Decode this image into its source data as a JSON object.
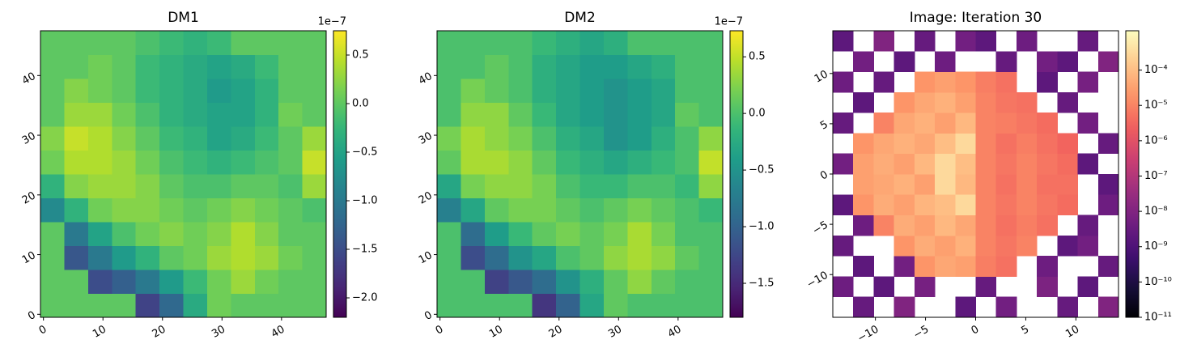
{
  "chart_data": [
    {
      "type": "heatmap",
      "title": "DM1",
      "colormap": "viridis",
      "origin": "lower",
      "zscale": "linear",
      "xlim": [
        -0.5,
        47.5
      ],
      "ylim": [
        -0.5,
        47.5
      ],
      "xticks": [
        0,
        10,
        20,
        30,
        40
      ],
      "yticks": [
        0,
        10,
        20,
        30,
        40
      ],
      "zlim": [
        -2.2,
        0.75
      ],
      "colorbar_offset": "1e−7",
      "zticks": [
        {
          "value": -2,
          "label": "−2.0"
        },
        {
          "value": -1.5,
          "label": "−1.5"
        },
        {
          "value": -1,
          "label": "−1.0"
        },
        {
          "value": -0.5,
          "label": "−0.5"
        },
        {
          "value": 0,
          "label": "0.0"
        },
        0.5
      ],
      "z": [
        [
          0,
          0,
          0,
          0,
          -1.6,
          -1.2,
          -0.4,
          0.1,
          0,
          0,
          0,
          0
        ],
        [
          0,
          0,
          -1.5,
          -1.3,
          -1.0,
          -0.6,
          -0.2,
          0.1,
          0.3,
          0.1,
          0,
          0
        ],
        [
          0,
          -1.4,
          -1.0,
          -0.6,
          -0.3,
          0.0,
          0.1,
          0.3,
          0.4,
          0.3,
          0.1,
          0
        ],
        [
          0,
          -1.0,
          -0.5,
          -0.1,
          0.1,
          0.2,
          0.1,
          0.2,
          0.4,
          0.2,
          0.0,
          0
        ],
        [
          -0.8,
          -0.3,
          0.1,
          0.2,
          0.2,
          0.1,
          0.0,
          0.1,
          0.2,
          0.1,
          0.0,
          -0.1
        ],
        [
          -0.3,
          0.2,
          0.3,
          0.3,
          0.2,
          0.0,
          -0.1,
          -0.1,
          0.0,
          0.0,
          -0.1,
          0.3
        ],
        [
          0.1,
          0.4,
          0.4,
          0.3,
          0.1,
          -0.1,
          -0.2,
          -0.3,
          -0.2,
          -0.1,
          0.0,
          0.5
        ],
        [
          0.2,
          0.5,
          0.4,
          0.2,
          0.0,
          -0.2,
          -0.3,
          -0.5,
          -0.4,
          -0.2,
          0.0,
          0.3
        ],
        [
          0,
          0.3,
          0.3,
          0.1,
          -0.1,
          -0.3,
          -0.4,
          -0.5,
          -0.5,
          -0.3,
          0.1,
          0
        ],
        [
          0,
          0.2,
          0.1,
          0.0,
          -0.2,
          -0.3,
          -0.4,
          -0.6,
          -0.5,
          -0.3,
          0.0,
          0
        ],
        [
          0,
          0,
          0.1,
          0.0,
          -0.2,
          -0.3,
          -0.4,
          -0.5,
          -0.4,
          -0.2,
          0,
          0
        ],
        [
          0,
          0,
          0,
          0,
          -0.1,
          -0.2,
          -0.3,
          -0.2,
          0,
          0,
          0,
          0
        ]
      ]
    },
    {
      "type": "heatmap",
      "title": "DM2",
      "colormap": "viridis",
      "origin": "lower",
      "zscale": "linear",
      "xlim": [
        -0.5,
        47.5
      ],
      "ylim": [
        -0.5,
        47.5
      ],
      "xticks": [
        0,
        10,
        20,
        30,
        40
      ],
      "yticks": [
        0,
        10,
        20,
        30,
        40
      ],
      "zlim": [
        -1.8,
        0.73
      ],
      "colorbar_offset": "1e−7",
      "zticks": [
        {
          "value": -1.5,
          "label": "−1.5"
        },
        {
          "value": -1,
          "label": "−1.0"
        },
        {
          "value": -0.5,
          "label": "−0.5"
        },
        {
          "value": 0,
          "label": "0.0"
        },
        0.5
      ],
      "z": [
        [
          0,
          0,
          0,
          0,
          -1.4,
          -1.0,
          -0.3,
          0.1,
          0,
          0,
          0,
          0
        ],
        [
          0,
          0,
          -1.3,
          -1.1,
          -0.9,
          -0.5,
          -0.2,
          0.1,
          0.3,
          0.1,
          0,
          0
        ],
        [
          0,
          -1.2,
          -0.9,
          -0.5,
          -0.3,
          0.0,
          0.1,
          0.3,
          0.4,
          0.3,
          0.1,
          0
        ],
        [
          0,
          -0.9,
          -0.4,
          -0.1,
          0.1,
          0.2,
          0.1,
          0.2,
          0.4,
          0.2,
          0.0,
          0
        ],
        [
          -0.7,
          -0.3,
          0.1,
          0.2,
          0.2,
          0.1,
          0.0,
          0.1,
          0.2,
          0.1,
          0.0,
          -0.1
        ],
        [
          -0.3,
          0.2,
          0.3,
          0.3,
          0.2,
          0.0,
          -0.1,
          -0.1,
          0.0,
          0.0,
          -0.1,
          0.3
        ],
        [
          0.1,
          0.4,
          0.4,
          0.3,
          0.1,
          -0.1,
          -0.2,
          -0.3,
          -0.2,
          -0.1,
          0.0,
          0.5
        ],
        [
          0.2,
          0.4,
          0.3,
          0.2,
          0.0,
          -0.2,
          -0.3,
          -0.5,
          -0.4,
          -0.2,
          0.0,
          0.3
        ],
        [
          0,
          0.3,
          0.3,
          0.1,
          -0.1,
          -0.3,
          -0.4,
          -0.5,
          -0.4,
          -0.3,
          0.1,
          0
        ],
        [
          0,
          0.2,
          0.1,
          0.0,
          -0.2,
          -0.3,
          -0.4,
          -0.5,
          -0.4,
          -0.3,
          0.0,
          0
        ],
        [
          0,
          0,
          0.1,
          0.0,
          -0.2,
          -0.3,
          -0.4,
          -0.4,
          -0.3,
          -0.2,
          0,
          0
        ],
        [
          0,
          0,
          0,
          0,
          -0.1,
          -0.2,
          -0.3,
          -0.2,
          0,
          0,
          0,
          0
        ]
      ]
    },
    {
      "type": "heatmap",
      "title": "Image: Iteration 30",
      "colormap": "magma",
      "origin": "lower",
      "zscale": "log",
      "xlim": [
        -14.25,
        14.25
      ],
      "ylim": [
        -14.25,
        14.25
      ],
      "xticks": [
        {
          "value": -10,
          "label": "−10"
        },
        {
          "value": -5,
          "label": "−5"
        },
        0,
        5,
        10
      ],
      "yticks": [
        {
          "value": -10,
          "label": "−10"
        },
        {
          "value": -5,
          "label": "−5"
        },
        0,
        5,
        10
      ],
      "zlim": [
        1e-11,
        0.0013
      ],
      "zticks": [
        {
          "value": 1e-11,
          "label": "10⁻¹¹"
        },
        {
          "value": 1e-10,
          "label": "10⁻¹⁰"
        },
        {
          "value": 1e-09,
          "label": "10⁻⁹"
        },
        {
          "value": 1e-08,
          "label": "10⁻⁸"
        },
        {
          "value": 1e-07,
          "label": "10⁻⁷"
        },
        {
          "value": 1e-06,
          "label": "10⁻⁶"
        },
        {
          "value": 1e-05,
          "label": "10⁻⁵"
        },
        {
          "value": 0.0001,
          "label": "10⁻⁴"
        }
      ],
      "z": [
        [
          null,
          3e-09,
          null,
          1e-08,
          null,
          null,
          2e-09,
          null,
          5e-09,
          null,
          null,
          3e-09,
          null,
          1e-08
        ],
        [
          4e-09,
          null,
          2e-09,
          null,
          6e-09,
          null,
          null,
          3e-09,
          null,
          null,
          8e-09,
          null,
          2e-09,
          null
        ],
        [
          null,
          2e-09,
          null,
          5e-09,
          2e-05,
          4e-05,
          3e-05,
          8e-06,
          5e-06,
          null,
          4e-09,
          null,
          null,
          3e-09
        ],
        [
          3e-09,
          null,
          null,
          2e-05,
          5e-05,
          3e-05,
          6e-05,
          1e-05,
          6e-06,
          1e-05,
          null,
          2e-09,
          5e-09,
          null
        ],
        [
          null,
          4e-09,
          1e-05,
          5e-05,
          3e-05,
          8e-05,
          4e-05,
          1e-05,
          5e-06,
          8e-06,
          5e-06,
          null,
          3e-09,
          null
        ],
        [
          2e-09,
          2e-05,
          5e-05,
          3e-05,
          7e-05,
          0.0001,
          0.0003,
          1e-05,
          6e-06,
          1e-05,
          6e-06,
          4e-06,
          null,
          4e-09
        ],
        [
          null,
          3e-05,
          4e-05,
          6e-05,
          3e-05,
          0.0003,
          8e-05,
          1e-05,
          5e-06,
          1e-05,
          5e-06,
          5e-06,
          null,
          2e-09
        ],
        [
          5e-09,
          3e-05,
          5e-05,
          3e-05,
          8e-05,
          0.0003,
          0.0001,
          1e-05,
          6e-06,
          1e-05,
          6e-06,
          4e-06,
          2e-09,
          null
        ],
        [
          null,
          2e-05,
          4e-05,
          6e-05,
          4e-05,
          0.0001,
          0.0003,
          1e-05,
          5e-06,
          8e-06,
          5e-06,
          3e-06,
          null,
          3e-09
        ],
        [
          3e-09,
          null,
          1e-05,
          4e-05,
          6e-05,
          3e-05,
          8e-05,
          1e-05,
          8e-06,
          6e-06,
          4e-06,
          null,
          5e-09,
          null
        ],
        [
          null,
          2e-09,
          null,
          2e-05,
          4e-05,
          6e-05,
          3e-05,
          1e-05,
          6e-06,
          5e-06,
          null,
          3e-09,
          null,
          null
        ],
        [
          4e-09,
          null,
          3e-09,
          null,
          2e-05,
          3e-05,
          2e-05,
          8e-06,
          5e-06,
          null,
          2e-09,
          null,
          6e-09,
          null
        ],
        [
          null,
          5e-09,
          null,
          2e-09,
          null,
          4e-09,
          null,
          null,
          3e-09,
          null,
          5e-09,
          2e-09,
          null,
          1e-08
        ],
        [
          2e-09,
          null,
          1e-08,
          null,
          3e-09,
          null,
          5e-09,
          2e-09,
          null,
          4e-09,
          null,
          null,
          3e-09,
          null
        ]
      ]
    }
  ]
}
